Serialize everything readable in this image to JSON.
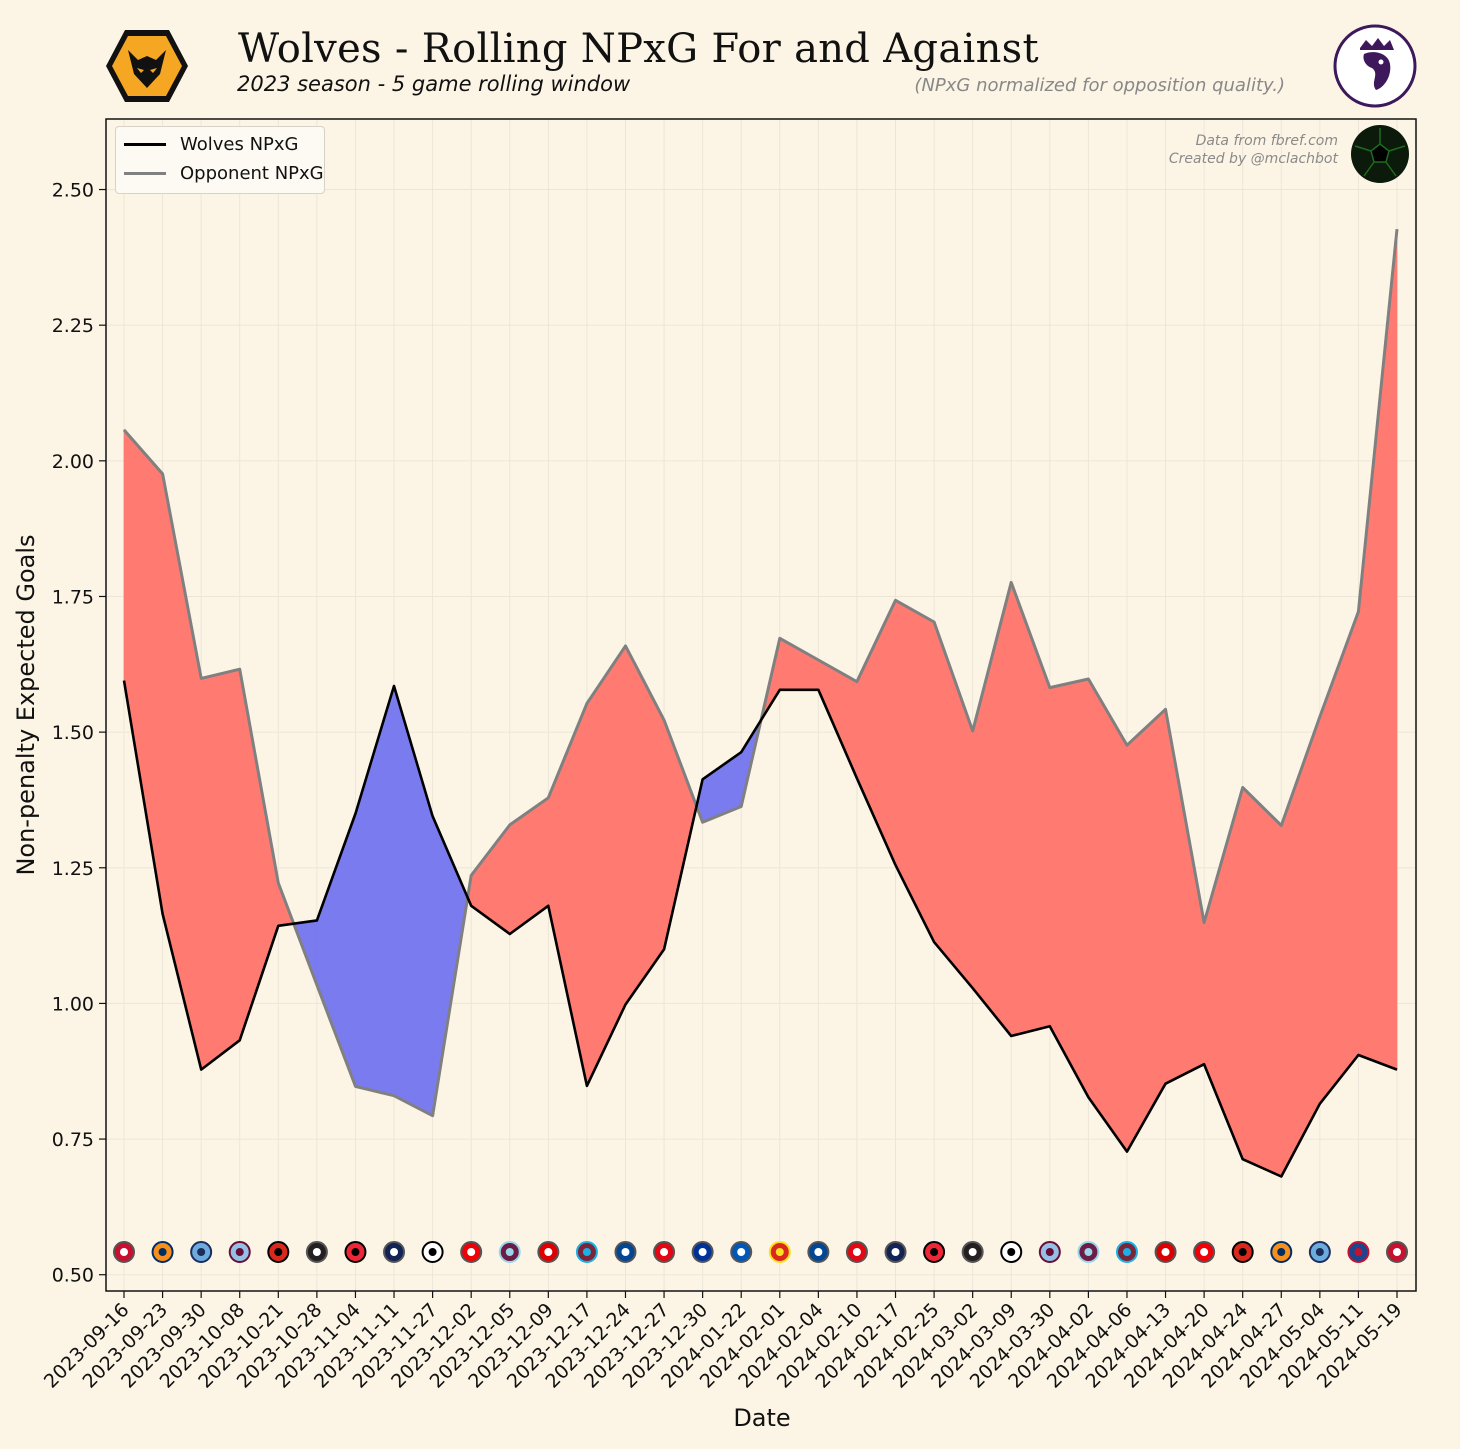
{
  "header": {
    "title": "Wolves - Rolling NPxG For and Against",
    "subtitle": "2023 season - 5 game rolling window",
    "note": "(NPxG normalized for opposition quality.)",
    "credit_line1": "Data from fbref.com",
    "credit_line2": "Created by @mclachbot"
  },
  "legend": {
    "wolves_label": "Wolves NPxG",
    "opponent_label": "Opponent NPxG"
  },
  "colors": {
    "background": "#fcf5e6",
    "wolves_line": "#000000",
    "opponent_line": "#808080",
    "fill_worse": "#ff7b72",
    "fill_better": "#7b7bf0",
    "wolves_gold": "#f5a623"
  },
  "chart_data": {
    "type": "line",
    "title": "Wolves - Rolling NPxG For and Against",
    "xlabel": "Date",
    "ylabel": "Non-penalty Expected Goals",
    "ylim": [
      0.47,
      2.63
    ],
    "yticks": [
      0.5,
      0.75,
      1.0,
      1.25,
      1.5,
      1.75,
      2.0,
      2.25,
      2.5
    ],
    "ytick_labels": [
      "0.50",
      "0.75",
      "1.00",
      "1.25",
      "1.50",
      "1.75",
      "2.00",
      "2.25",
      "2.50"
    ],
    "grid": true,
    "legend_position": "top-left",
    "categories": [
      "2023-09-16",
      "2023-09-23",
      "2023-09-30",
      "2023-10-08",
      "2023-10-21",
      "2023-10-28",
      "2023-11-04",
      "2023-11-11",
      "2023-11-27",
      "2023-12-02",
      "2023-12-05",
      "2023-12-09",
      "2023-12-17",
      "2023-12-24",
      "2023-12-27",
      "2023-12-30",
      "2024-01-22",
      "2024-02-01",
      "2024-02-04",
      "2024-02-10",
      "2024-02-17",
      "2024-02-25",
      "2024-03-02",
      "2024-03-09",
      "2024-03-30",
      "2024-04-02",
      "2024-04-06",
      "2024-04-13",
      "2024-04-20",
      "2024-04-24",
      "2024-04-27",
      "2024-05-04",
      "2024-05-11",
      "2024-05-19"
    ],
    "opponents": [
      "liverpool",
      "luton",
      "man-city",
      "aston-villa",
      "bournemouth",
      "newcastle",
      "sheffield-utd",
      "tottenham",
      "fulham",
      "arsenal",
      "burnley",
      "nottm-forest",
      "west-ham",
      "chelsea",
      "brentford",
      "everton",
      "brighton",
      "man-utd",
      "chelsea",
      "brentford",
      "tottenham",
      "sheffield-utd",
      "newcastle",
      "fulham",
      "aston-villa",
      "burnley",
      "west-ham",
      "nottm-forest",
      "arsenal",
      "bournemouth",
      "luton",
      "man-city",
      "crystal-palace",
      "liverpool"
    ],
    "series": [
      {
        "name": "Wolves NPxG",
        "values": [
          1.595,
          1.165,
          0.878,
          0.932,
          1.143,
          1.153,
          1.35,
          1.585,
          1.345,
          1.18,
          1.128,
          1.18,
          0.848,
          0.998,
          1.1,
          1.413,
          1.463,
          1.578,
          1.578,
          1.415,
          1.255,
          1.113,
          1.028,
          0.94,
          0.958,
          0.827,
          0.727,
          0.852,
          0.888,
          0.713,
          0.681,
          0.815,
          0.905,
          0.878
        ]
      },
      {
        "name": "Opponent NPxG",
        "values": [
          2.057,
          1.976,
          1.599,
          1.616,
          1.222,
          1.034,
          0.847,
          0.83,
          0.793,
          1.236,
          1.329,
          1.379,
          1.553,
          1.659,
          1.522,
          1.334,
          1.363,
          1.673,
          1.633,
          1.593,
          1.743,
          1.703,
          1.502,
          1.776,
          1.582,
          1.598,
          1.476,
          1.542,
          1.149,
          1.398,
          1.328,
          1.528,
          1.722,
          2.427
        ]
      }
    ]
  }
}
